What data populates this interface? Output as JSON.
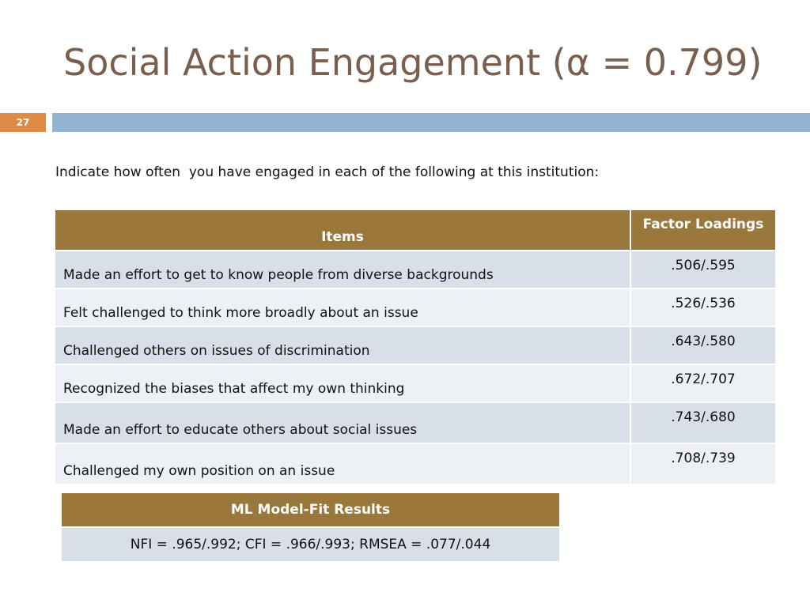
{
  "slide": {
    "title": "Social Action Engagement (α = 0.799)",
    "number": "27",
    "intro": "Indicate how often  you have engaged in each of the following at this institution:",
    "colors": {
      "title": "#7a5f4e",
      "number_bar": "#df8a46",
      "accent_bar": "#93b4d2",
      "table_header": "#9a783b",
      "row_dark": "#d9dfe8",
      "row_light": "#edf0f5"
    }
  },
  "items_table": {
    "headers": {
      "items": "Items",
      "loadings": "Factor Loadings"
    },
    "rows": [
      {
        "item": "Made an effort to get to know people from diverse backgrounds",
        "loading": ".506/.595"
      },
      {
        "item": "Felt challenged to think more broadly about an issue",
        "loading": ".526/.536"
      },
      {
        "item": "Challenged others on issues of discrimination",
        "loading": ".643/.580"
      },
      {
        "item": "Recognized the biases that affect my own thinking",
        "loading": ".672/.707"
      },
      {
        "item": "Made an effort to educate others about social issues",
        "loading": ".743/.680"
      },
      {
        "item": "Challenged my own position on an issue",
        "loading": ".708/.739"
      }
    ]
  },
  "fit_table": {
    "header": "ML Model-Fit Results",
    "value": "NFI = .965/.992; CFI = .966/.993; RMSEA = .077/.044"
  }
}
